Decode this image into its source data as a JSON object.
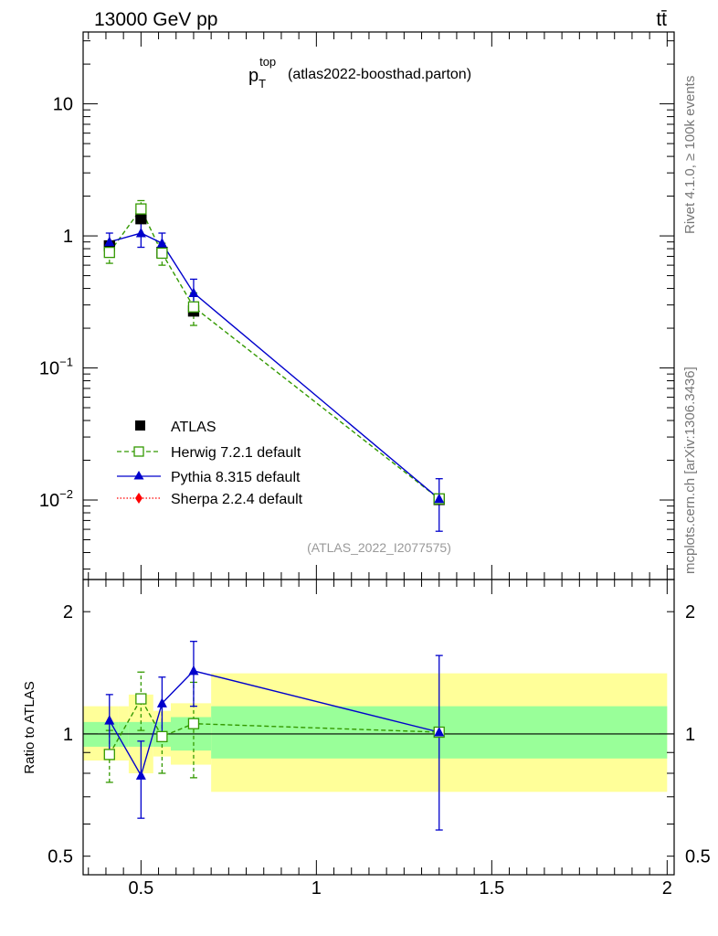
{
  "header": {
    "energy_label": "13000 GeV pp",
    "process_label": "tt̄"
  },
  "side_labels": {
    "rivet": "Rivet 4.1.0, ≥ 100k events",
    "mcplots": "mcplots.cern.ch [arXiv:1306.3436]"
  },
  "watermark": "(ATLAS_2022_I2077575)",
  "colors": {
    "atlas": "#000000",
    "herwig": "#339900",
    "pythia": "#0000cc",
    "sherpa": "#ff0000",
    "band_inner": "#99ff99",
    "band_outer": "#ffff99"
  },
  "chart_data": [
    {
      "type": "scatter",
      "title": {
        "main": "p",
        "sup": "top",
        "sub": "T",
        "suffix": "(atlas2022-boosthad.parton)"
      },
      "yscale": "log",
      "ylim": [
        0.0025,
        35
      ],
      "xlim": [
        0.335,
        2.02
      ],
      "ylabel": "",
      "yticks": [
        {
          "value": 0.01,
          "base": "10",
          "exp": "−2"
        },
        {
          "value": 0.1,
          "base": "10",
          "exp": "−1"
        },
        {
          "value": 1,
          "base": "1",
          "exp": ""
        },
        {
          "value": 10,
          "base": "10",
          "exp": ""
        }
      ],
      "legend": {
        "position": "middle-left",
        "entries": [
          {
            "key": "atlas",
            "label": "ATLAS"
          },
          {
            "key": "herwig",
            "label": "Herwig 7.2.1 default"
          },
          {
            "key": "pythia",
            "label": "Pythia 8.315 default"
          },
          {
            "key": "sherpa",
            "label": "Sherpa 2.2.4 default"
          }
        ]
      },
      "series": [
        {
          "key": "atlas",
          "name": "ATLAS",
          "x": [
            0.41,
            0.5,
            0.56,
            0.65,
            1.35
          ],
          "y": [
            0.84,
            1.35,
            0.75,
            0.27,
            0.0101
          ],
          "xerr": [
            [
              0.335,
              0.435
            ],
            [
              0.465,
              0.535
            ],
            [
              0.535,
              0.585
            ],
            [
              0.585,
              0.7
            ],
            [
              0.7,
              2.0
            ]
          ]
        },
        {
          "key": "herwig",
          "name": "Herwig 7.2.1 default",
          "x": [
            0.41,
            0.5,
            0.56,
            0.65,
            1.35
          ],
          "y": [
            0.75,
            1.6,
            0.74,
            0.29,
            0.0102
          ],
          "yerr_low": [
            0.62,
            1.35,
            0.6,
            0.21,
            0.0102
          ],
          "yerr_high": [
            0.88,
            1.85,
            0.88,
            0.37,
            0.0102
          ]
        },
        {
          "key": "pythia",
          "name": "Pythia 8.315 default",
          "x": [
            0.41,
            0.5,
            0.56,
            0.65,
            1.35
          ],
          "y": [
            0.9,
            1.05,
            0.88,
            0.37,
            0.0102
          ],
          "yerr_low": [
            0.74,
            0.82,
            0.72,
            0.29,
            0.0058
          ],
          "yerr_high": [
            1.05,
            1.28,
            1.05,
            0.47,
            0.0145
          ]
        }
      ]
    },
    {
      "type": "scatter",
      "title": "",
      "yscale": "log",
      "ylim": [
        0.45,
        2.4
      ],
      "xlim": [
        0.335,
        2.02
      ],
      "ylabel": "Ratio to ATLAS",
      "xlabel": "",
      "yticks": [
        0.5,
        1,
        2
      ],
      "xticks": [
        0.5,
        1,
        1.5,
        2
      ],
      "xtick_labels": [
        "0.5",
        "1",
        "1.5",
        "2"
      ],
      "ytick_labels": [
        "0.5",
        "1",
        "2"
      ],
      "bands": [
        {
          "x0": 0.335,
          "x1": 0.435,
          "inner": [
            0.93,
            1.07
          ],
          "outer": [
            0.86,
            1.17
          ]
        },
        {
          "x0": 0.435,
          "x1": 0.465,
          "inner": [
            0.93,
            1.07
          ],
          "outer": [
            0.86,
            1.17
          ]
        },
        {
          "x0": 0.465,
          "x1": 0.535,
          "inner": [
            0.93,
            1.07
          ],
          "outer": [
            0.8,
            1.25
          ]
        },
        {
          "x0": 0.535,
          "x1": 0.585,
          "inner": [
            0.93,
            1.07
          ],
          "outer": [
            0.88,
            1.14
          ]
        },
        {
          "x0": 0.585,
          "x1": 0.7,
          "inner": [
            0.91,
            1.1
          ],
          "outer": [
            0.84,
            1.19
          ]
        },
        {
          "x0": 0.7,
          "x1": 2.0,
          "inner": [
            0.87,
            1.17
          ],
          "outer": [
            0.72,
            1.41
          ]
        }
      ],
      "series": [
        {
          "key": "herwig",
          "name": "Herwig 7.2.1 default",
          "x": [
            0.41,
            0.5,
            0.56,
            0.65,
            1.35
          ],
          "y": [
            0.89,
            1.22,
            0.985,
            1.06,
            1.01
          ],
          "yerr_low": [
            0.76,
            1.02,
            0.8,
            0.78,
            1.01
          ],
          "yerr_high": [
            1.02,
            1.42,
            1.17,
            1.34,
            1.01
          ]
        },
        {
          "key": "pythia",
          "name": "Pythia 8.315 default",
          "x": [
            0.41,
            0.5,
            0.56,
            0.65,
            1.35
          ],
          "y": [
            1.08,
            0.79,
            1.19,
            1.43,
            1.01
          ],
          "yerr_low": [
            0.91,
            0.62,
            1.0,
            1.17,
            0.58
          ],
          "yerr_high": [
            1.25,
            0.96,
            1.38,
            1.69,
            1.56
          ]
        }
      ]
    }
  ]
}
